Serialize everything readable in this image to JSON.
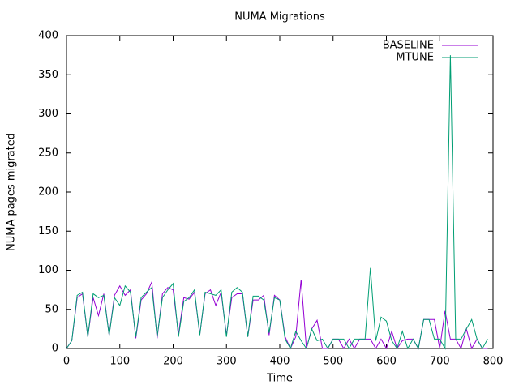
{
  "chart_data": {
    "type": "line",
    "title": "NUMA Migrations",
    "xlabel": "Time",
    "ylabel": "NUMA pages migrated",
    "x": [
      0,
      10,
      20,
      30,
      40,
      50,
      60,
      70,
      80,
      90,
      100,
      110,
      120,
      130,
      140,
      150,
      160,
      170,
      180,
      190,
      200,
      210,
      220,
      230,
      240,
      250,
      260,
      270,
      280,
      290,
      300,
      310,
      320,
      330,
      340,
      350,
      360,
      370,
      380,
      390,
      400,
      410,
      420,
      430,
      440,
      450,
      460,
      470,
      480,
      490,
      500,
      510,
      520,
      530,
      540,
      550,
      560,
      570,
      580,
      590,
      600,
      610,
      620,
      630,
      640,
      650,
      660,
      670,
      680,
      690,
      700,
      710,
      720,
      730,
      740,
      750,
      760,
      770,
      780,
      790
    ],
    "series": [
      {
        "name": "BASELINE",
        "color": "#9400d3",
        "values": [
          0,
          10,
          65,
          70,
          15,
          65,
          42,
          70,
          17,
          68,
          80,
          68,
          75,
          13,
          62,
          70,
          85,
          13,
          70,
          78,
          75,
          18,
          65,
          63,
          72,
          18,
          70,
          75,
          55,
          72,
          17,
          65,
          70,
          70,
          15,
          62,
          62,
          68,
          17,
          68,
          62,
          15,
          0,
          15,
          88,
          0,
          25,
          36,
          0,
          0,
          12,
          12,
          0,
          12,
          0,
          12,
          12,
          12,
          0,
          12,
          0,
          22,
          0,
          10,
          12,
          12,
          0,
          37,
          37,
          37,
          0,
          48,
          12,
          12,
          0,
          25,
          0,
          12,
          0,
          0
        ]
      },
      {
        "name": "MTUNE",
        "color": "#009e73",
        "values": [
          0,
          10,
          68,
          72,
          15,
          70,
          65,
          68,
          17,
          65,
          55,
          80,
          72,
          15,
          65,
          72,
          78,
          15,
          65,
          75,
          83,
          15,
          60,
          65,
          75,
          17,
          72,
          70,
          68,
          75,
          15,
          72,
          78,
          72,
          15,
          67,
          67,
          62,
          20,
          65,
          62,
          12,
          0,
          22,
          10,
          0,
          25,
          10,
          12,
          0,
          12,
          12,
          12,
          0,
          12,
          12,
          12,
          103,
          10,
          40,
          35,
          10,
          0,
          22,
          0,
          12,
          0,
          37,
          37,
          12,
          12,
          0,
          375,
          12,
          12,
          25,
          37,
          12,
          0,
          12
        ]
      }
    ],
    "xlim": [
      0,
      800
    ],
    "ylim": [
      0,
      400
    ],
    "xticks": [
      0,
      100,
      200,
      300,
      400,
      500,
      600,
      700,
      800
    ],
    "yticks": [
      0,
      50,
      100,
      150,
      200,
      250,
      300,
      350,
      400
    ],
    "legend": "upper right"
  }
}
